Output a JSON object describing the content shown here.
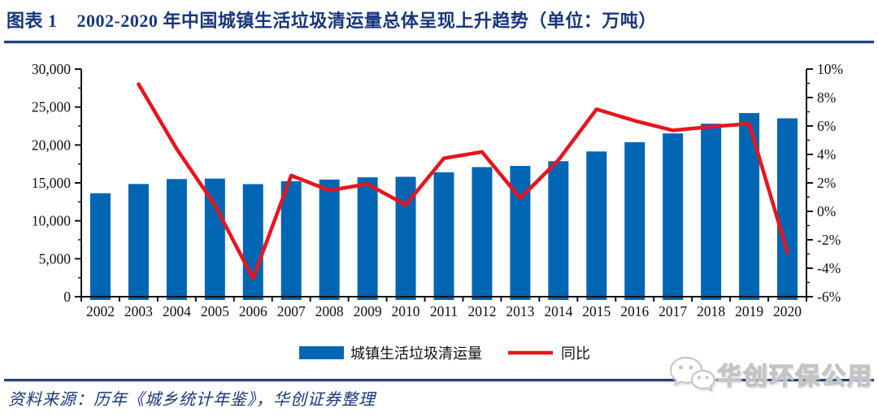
{
  "header": {
    "figure_label": "图表 1",
    "title": "2002-2020 年中国城镇生活垃圾清运量总体呈现上升趋势（单位：万吨）"
  },
  "chart_data": {
    "type": "combo",
    "categories": [
      "2002",
      "2003",
      "2004",
      "2005",
      "2006",
      "2007",
      "2008",
      "2009",
      "2010",
      "2011",
      "2012",
      "2013",
      "2014",
      "2015",
      "2016",
      "2017",
      "2018",
      "2019",
      "2020"
    ],
    "series": [
      {
        "name": "城镇生活垃圾清运量",
        "type": "bar",
        "axis": "left",
        "color": "#0066B4",
        "values": [
          13638,
          14857,
          15509,
          15577,
          14841,
          15215,
          15438,
          15734,
          15805,
          16395,
          17081,
          17239,
          17860,
          19142,
          20362,
          21521,
          22802,
          24206,
          23512
        ]
      },
      {
        "name": "同比",
        "type": "line",
        "axis": "right",
        "color": "#E8151D",
        "values": [
          null,
          8.94,
          4.39,
          0.44,
          -4.72,
          2.52,
          1.47,
          1.92,
          0.45,
          3.73,
          4.18,
          0.92,
          3.6,
          7.18,
          6.37,
          5.69,
          5.95,
          6.16,
          -2.87
        ]
      }
    ],
    "left_axis": {
      "min": 0,
      "max": 30000,
      "tick_step": 5000,
      "minor_step": 2500,
      "tick_labels": [
        "0",
        "5,000",
        "10,000",
        "15,000",
        "20,000",
        "25,000",
        "30,000"
      ]
    },
    "right_axis": {
      "min": -6,
      "max": 10,
      "tick_step": 2,
      "minor_step": 1,
      "tick_labels": [
        "-6%",
        "-4%",
        "-2%",
        "0%",
        "2%",
        "4%",
        "6%",
        "8%",
        "10%"
      ]
    },
    "grid": false,
    "legend_position": "bottom",
    "title": "2002-2020 年中国城镇生活垃圾清运量总体呈现上升趋势",
    "unit": "万吨"
  },
  "footer": {
    "source": "资料来源：历年《城乡统计年鉴》，华创证券整理"
  },
  "watermark": {
    "icon": "wechat-icon",
    "text": "华创环保公用"
  },
  "colors": {
    "navy": "#17377D",
    "rule_navy": "#24417F",
    "bar_blue": "#0066B4",
    "line_red": "#E8151D",
    "axis_black": "#111111",
    "watermark_gray": "#C3C3C3"
  }
}
